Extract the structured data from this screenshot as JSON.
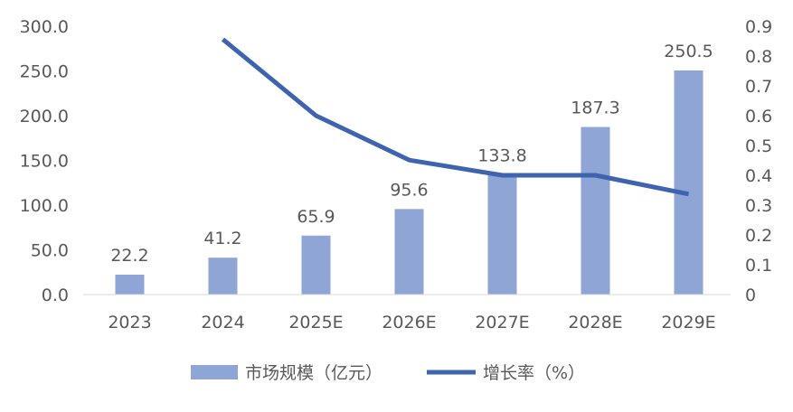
{
  "chart_data": {
    "type": "bar+line",
    "categories": [
      "2023",
      "2024",
      "2025E",
      "2026E",
      "2027E",
      "2028E",
      "2029E"
    ],
    "series": [
      {
        "name": "市场规模（亿元）",
        "type": "bar",
        "axis": "left",
        "values": [
          22.2,
          41.2,
          65.9,
          95.6,
          133.8,
          187.3,
          250.5
        ],
        "data_labels": [
          "22.2",
          "41.2",
          "65.9",
          "95.6",
          "133.8",
          "187.3",
          "250.5"
        ],
        "color": "#8FA5D6"
      },
      {
        "name": "增长率（%）",
        "type": "line",
        "axis": "right",
        "values": [
          null,
          0.856,
          0.6,
          0.451,
          0.4,
          0.4,
          0.337
        ],
        "color": "#3E64B0"
      }
    ],
    "left_axis": {
      "ylim": [
        0,
        300
      ],
      "ticks": [
        "0.0",
        "50.0",
        "100.0",
        "150.0",
        "200.0",
        "250.0",
        "300.0"
      ]
    },
    "right_axis": {
      "ylim": [
        0,
        0.9
      ],
      "ticks": [
        "0",
        "0.1",
        "0.2",
        "0.3",
        "0.4",
        "0.5",
        "0.6",
        "0.7",
        "0.8",
        "0.9"
      ]
    },
    "grid": false,
    "legend": "bottom"
  }
}
